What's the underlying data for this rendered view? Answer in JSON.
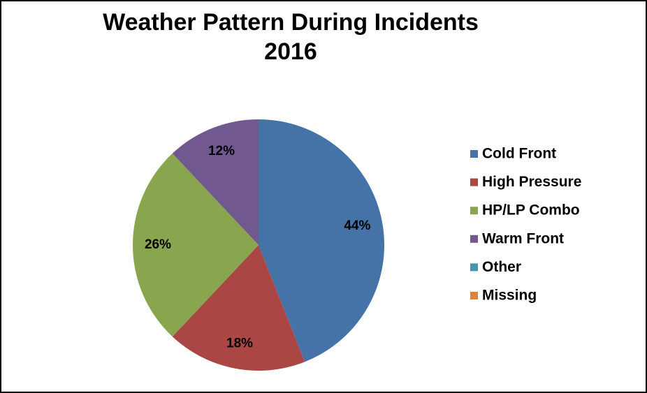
{
  "chart_data": {
    "type": "pie",
    "title": [
      "Weather Pattern During Incidents",
      "2016"
    ],
    "categories": [
      "Cold Front",
      "High Pressure",
      "HP/LP Combo",
      "Warm Front",
      "Other",
      "Missing"
    ],
    "values": [
      44,
      18,
      26,
      12,
      0,
      0
    ],
    "value_labels": [
      "44%",
      "18%",
      "26%",
      "12%",
      null,
      null
    ],
    "colors": [
      "#4572A7",
      "#AA4643",
      "#89A54E",
      "#71588F",
      "#4198AF",
      "#DB843D"
    ],
    "legend": "right"
  }
}
